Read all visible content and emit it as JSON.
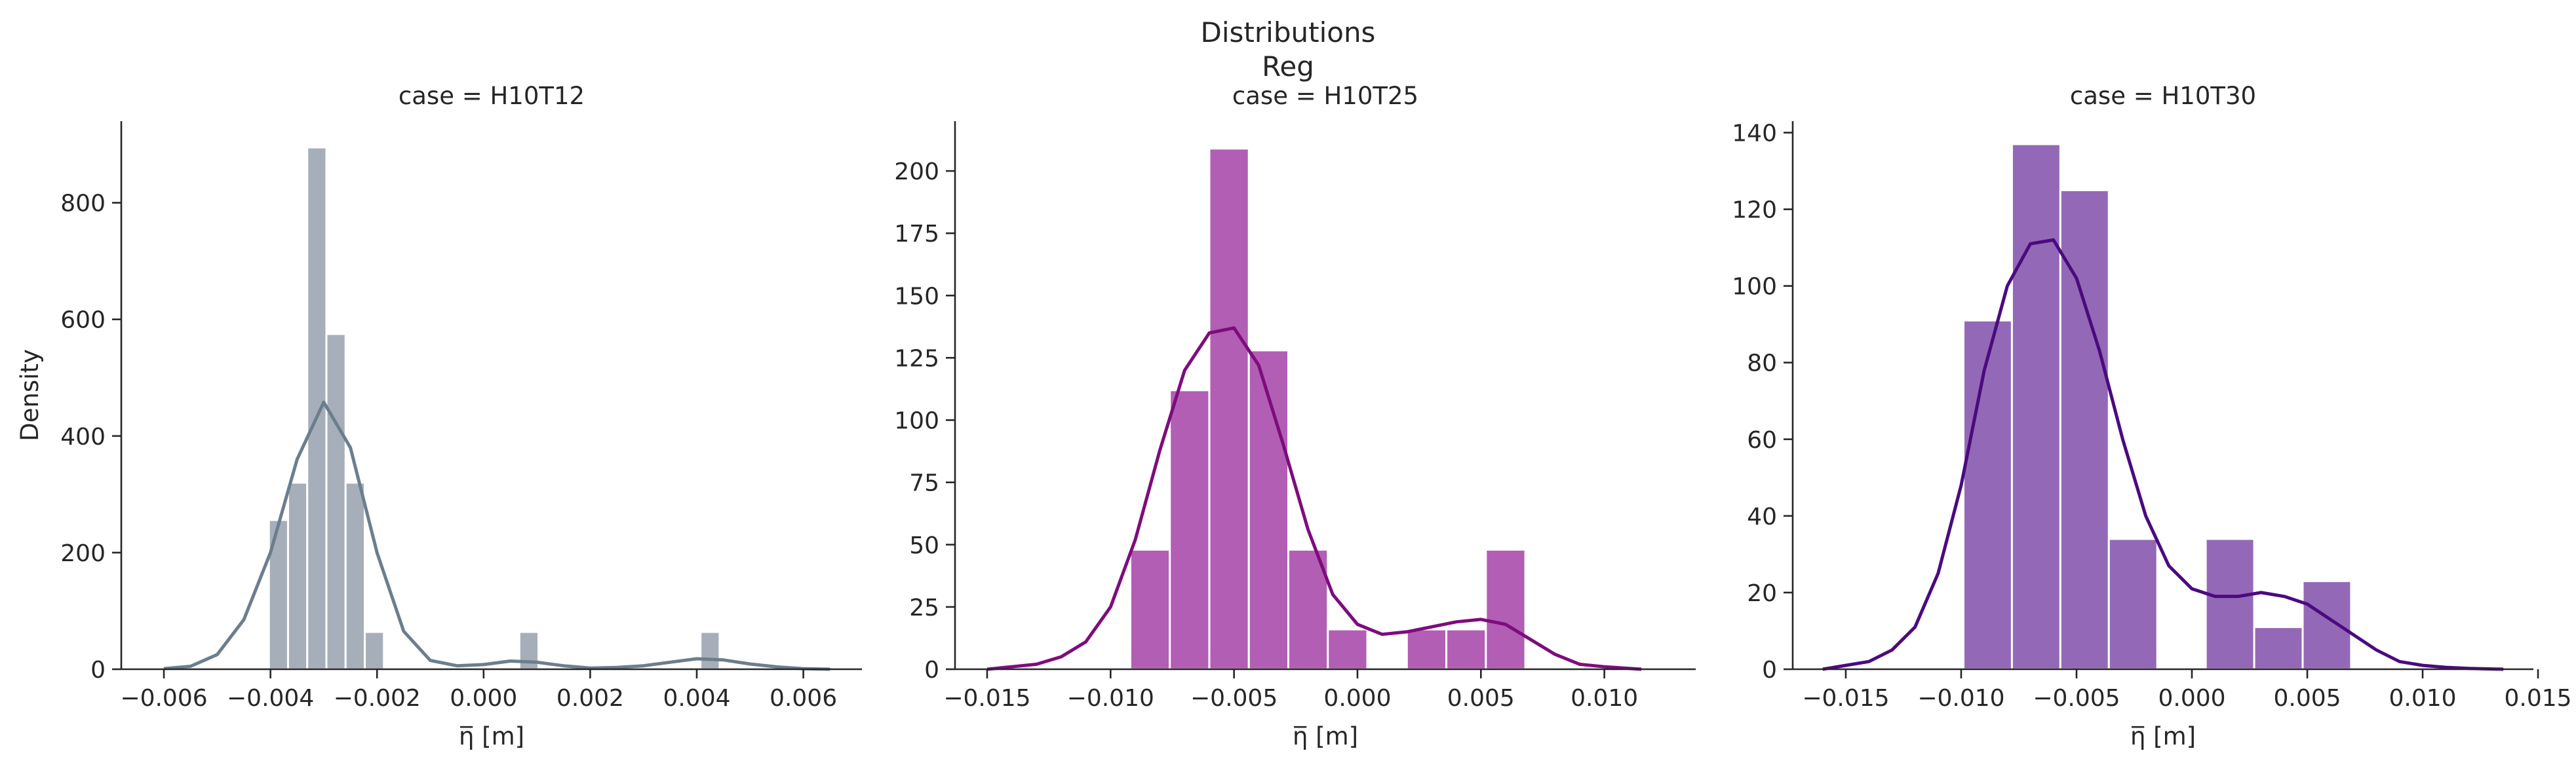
{
  "figure": {
    "suptitle_line1": "Distributions",
    "suptitle_line2": "Reg"
  },
  "chart_data": [
    {
      "type": "bar",
      "title": "case = H10T12",
      "xlabel": "η̅ [m]",
      "ylabel": "Density",
      "xlim": [
        -0.0068,
        0.0071
      ],
      "ylim": [
        0,
        940
      ],
      "xticks": [
        -0.006,
        -0.004,
        -0.002,
        0.0,
        0.002,
        0.004,
        0.006
      ],
      "xtick_labels": [
        "−0.006",
        "−0.004",
        "−0.002",
        "0.000",
        "0.002",
        "0.004",
        "0.006"
      ],
      "yticks": [
        0,
        200,
        400,
        600,
        800
      ],
      "ytick_labels": [
        "0",
        "200",
        "400",
        "600",
        "800"
      ],
      "bar_color": "#a6afb9",
      "line_color": "#6c7e8e",
      "bins": [
        {
          "x0": -0.00403,
          "x1": -0.00367,
          "value": 256
        },
        {
          "x0": -0.00367,
          "x1": -0.00331,
          "value": 320
        },
        {
          "x0": -0.00331,
          "x1": -0.00295,
          "value": 895
        },
        {
          "x0": -0.00295,
          "x1": -0.00259,
          "value": 575
        },
        {
          "x0": -0.00259,
          "x1": -0.00223,
          "value": 320
        },
        {
          "x0": -0.00223,
          "x1": -0.00187,
          "value": 64
        },
        {
          "x0": 0.00067,
          "x1": 0.00103,
          "value": 64
        },
        {
          "x0": 0.00407,
          "x1": 0.00443,
          "value": 64
        }
      ],
      "kde": {
        "x": [
          -0.006,
          -0.0055,
          -0.005,
          -0.0045,
          -0.004,
          -0.0035,
          -0.003,
          -0.0025,
          -0.002,
          -0.0015,
          -0.001,
          -0.0005,
          0.0,
          0.0005,
          0.001,
          0.0015,
          0.002,
          0.0025,
          0.003,
          0.0035,
          0.004,
          0.0045,
          0.005,
          0.0055,
          0.006,
          0.0065
        ],
        "y": [
          1,
          5,
          25,
          85,
          200,
          360,
          458,
          380,
          200,
          65,
          15,
          6,
          8,
          14,
          12,
          6,
          2,
          3,
          6,
          12,
          18,
          16,
          9,
          4,
          1,
          0
        ]
      }
    },
    {
      "type": "bar",
      "title": "case = H10T25",
      "xlabel": "η̅ [m]",
      "ylabel": "",
      "xlim": [
        -0.0163,
        0.0137
      ],
      "ylim": [
        0,
        220
      ],
      "xticks": [
        -0.015,
        -0.01,
        -0.005,
        0.0,
        0.005,
        0.01
      ],
      "xtick_labels": [
        "−0.015",
        "−0.010",
        "−0.005",
        "0.000",
        "0.005",
        "0.010"
      ],
      "yticks": [
        0,
        25,
        50,
        75,
        100,
        125,
        150,
        175,
        200
      ],
      "ytick_labels": [
        "0",
        "25",
        "50",
        "75",
        "100",
        "125",
        "150",
        "175",
        "200"
      ],
      "bar_color": "#b25eb4",
      "line_color": "#7e0c7e",
      "bins": [
        {
          "x0": -0.0092,
          "x1": -0.0076,
          "value": 48
        },
        {
          "x0": -0.0076,
          "x1": -0.006,
          "value": 112
        },
        {
          "x0": -0.006,
          "x1": -0.0044,
          "value": 209
        },
        {
          "x0": -0.0044,
          "x1": -0.0028,
          "value": 128
        },
        {
          "x0": -0.0028,
          "x1": -0.0012,
          "value": 48
        },
        {
          "x0": -0.0012,
          "x1": 0.0004,
          "value": 16
        },
        {
          "x0": 0.002,
          "x1": 0.0036,
          "value": 16
        },
        {
          "x0": 0.0036,
          "x1": 0.0052,
          "value": 16
        },
        {
          "x0": 0.0052,
          "x1": 0.0068,
          "value": 48
        }
      ],
      "kde": {
        "x": [
          -0.015,
          -0.014,
          -0.013,
          -0.012,
          -0.011,
          -0.01,
          -0.009,
          -0.008,
          -0.007,
          -0.006,
          -0.005,
          -0.004,
          -0.003,
          -0.002,
          -0.001,
          0.0,
          0.001,
          0.002,
          0.003,
          0.004,
          0.005,
          0.006,
          0.007,
          0.008,
          0.009,
          0.01,
          0.0115
        ],
        "y": [
          0,
          1,
          2,
          5,
          11,
          25,
          52,
          88,
          120,
          135,
          137,
          122,
          90,
          56,
          30,
          18,
          14,
          15,
          17,
          19,
          20,
          18,
          12,
          6,
          2,
          1,
          0
        ]
      }
    },
    {
      "type": "bar",
      "title": "case = H10T30",
      "xlabel": "η̅ [m]",
      "ylabel": "",
      "xlim": [
        -0.0173,
        0.0148
      ],
      "ylim": [
        0,
        143
      ],
      "xticks": [
        -0.015,
        -0.01,
        -0.005,
        0.0,
        0.005,
        0.01,
        0.015
      ],
      "xtick_labels": [
        "−0.015",
        "−0.010",
        "−0.005",
        "0.000",
        "0.005",
        "0.010",
        "0.015"
      ],
      "yticks": [
        0,
        20,
        40,
        60,
        80,
        100,
        120,
        140
      ],
      "ytick_labels": [
        "0",
        "20",
        "40",
        "60",
        "80",
        "100",
        "120",
        "140"
      ],
      "bar_color": "#9369b7",
      "line_color": "#4b0a7f",
      "bins": [
        {
          "x0": -0.0099,
          "x1": -0.0078,
          "value": 91
        },
        {
          "x0": -0.0078,
          "x1": -0.0057,
          "value": 137
        },
        {
          "x0": -0.0057,
          "x1": -0.0036,
          "value": 125
        },
        {
          "x0": -0.0036,
          "x1": -0.0015,
          "value": 34
        },
        {
          "x0": 0.0006,
          "x1": 0.0027,
          "value": 34
        },
        {
          "x0": 0.0027,
          "x1": 0.0048,
          "value": 11
        },
        {
          "x0": 0.0048,
          "x1": 0.0069,
          "value": 23
        }
      ],
      "kde": {
        "x": [
          -0.016,
          -0.015,
          -0.014,
          -0.013,
          -0.012,
          -0.011,
          -0.01,
          -0.009,
          -0.008,
          -0.007,
          -0.006,
          -0.005,
          -0.004,
          -0.003,
          -0.002,
          -0.001,
          0.0,
          0.001,
          0.002,
          0.003,
          0.004,
          0.005,
          0.006,
          0.007,
          0.008,
          0.009,
          0.01,
          0.011,
          0.012,
          0.0135
        ],
        "y": [
          0,
          1,
          2,
          5,
          11,
          25,
          48,
          78,
          100,
          111,
          112,
          102,
          83,
          60,
          40,
          27,
          21,
          19,
          19,
          20,
          19,
          17,
          13,
          9,
          5,
          2,
          1,
          0.5,
          0.2,
          0
        ]
      }
    }
  ]
}
